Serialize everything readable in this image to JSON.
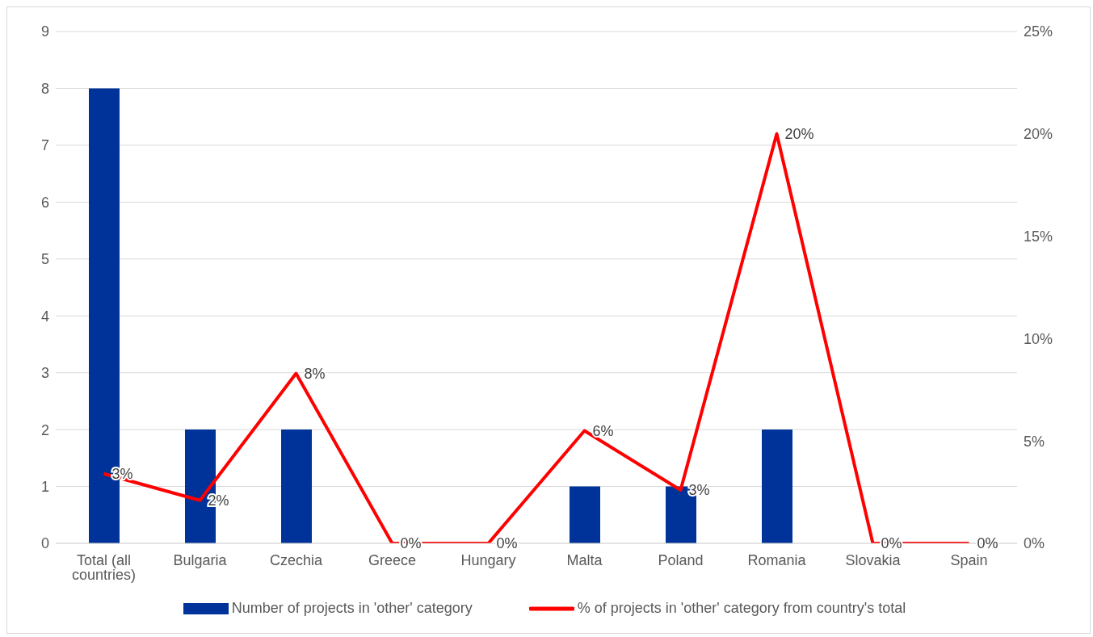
{
  "chart_data": {
    "type": "bar",
    "categories": [
      "Total (all countries)",
      "Bulgaria",
      "Czechia",
      "Greece",
      "Hungary",
      "Malta",
      "Poland",
      "Romania",
      "Slovakia",
      "Spain"
    ],
    "series": [
      {
        "name": "Number of projects in 'other' category",
        "color": "#003399",
        "values": [
          8,
          2,
          2,
          0,
          0,
          1,
          1,
          2,
          0,
          0
        ]
      },
      {
        "name": "% of projects in 'other' category from country's total",
        "type": "line",
        "axis": "y2",
        "color": "#ff0000",
        "values": [
          3.4,
          2.1,
          8.3,
          0,
          0,
          5.5,
          2.6,
          20,
          0,
          0
        ],
        "value_labels": [
          "3%",
          "2%",
          "8%",
          "0%",
          "0%",
          "6%",
          "3%",
          "20%",
          "0%",
          "0%"
        ]
      }
    ],
    "ylim": [
      0,
      9
    ],
    "yticks": [
      0,
      1,
      2,
      3,
      4,
      5,
      6,
      7,
      8,
      9
    ],
    "y2lim": [
      0,
      25
    ],
    "y2ticks": [
      {
        "value": 0,
        "label": "0%"
      },
      {
        "value": 5,
        "label": "5%"
      },
      {
        "value": 10,
        "label": "10%"
      },
      {
        "value": 15,
        "label": "15%"
      },
      {
        "value": 20,
        "label": "20%"
      },
      {
        "value": 25,
        "label": "25%"
      }
    ],
    "grid": "y",
    "legend": "bottom"
  }
}
